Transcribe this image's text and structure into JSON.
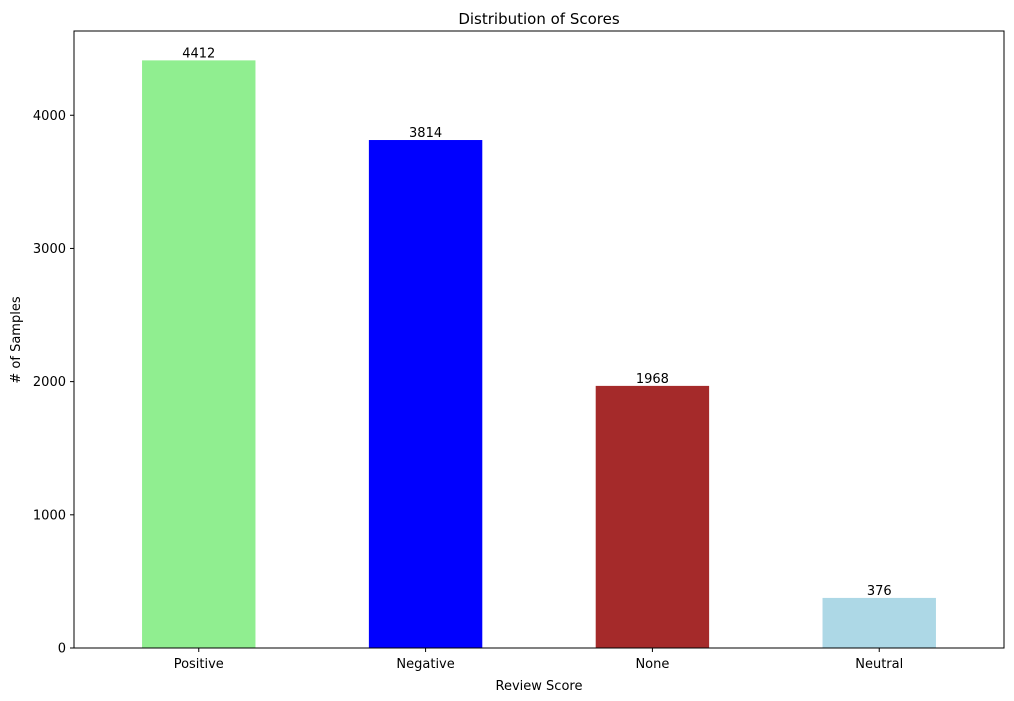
{
  "chart_data": {
    "type": "bar",
    "title": "Distribution of Scores",
    "xlabel": "Review Score",
    "ylabel": "# of Samples",
    "categories": [
      "Positive",
      "Negative",
      "None",
      "Neutral"
    ],
    "values": [
      4412,
      3814,
      1968,
      376
    ],
    "value_labels": [
      "4412",
      "3814",
      "1968",
      "376"
    ],
    "colors": [
      "#90ee90",
      "#0000ff",
      "#a52a2a",
      "#add8e6"
    ],
    "ylim": [
      0,
      4632.6
    ],
    "yticks": [
      0,
      1000,
      2000,
      3000,
      4000
    ],
    "ytick_labels": [
      "0",
      "1000",
      "2000",
      "3000",
      "4000"
    ],
    "grid": false,
    "legend": "none"
  }
}
